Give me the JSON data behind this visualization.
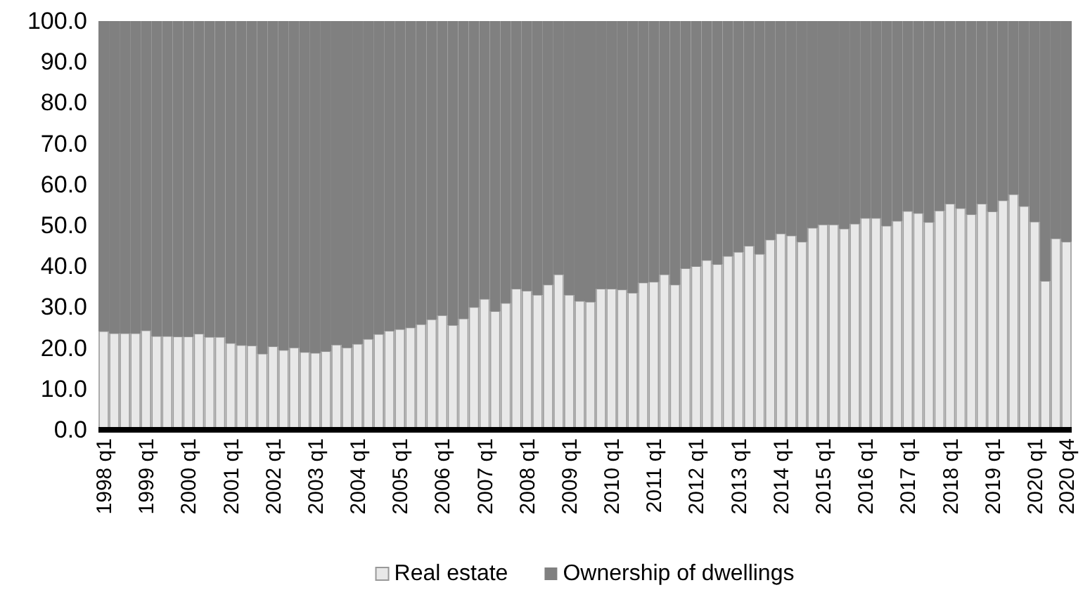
{
  "chart_data": {
    "type": "bar",
    "stacked": true,
    "categories": [
      "1998 q1",
      null,
      null,
      null,
      "1999 q1",
      null,
      null,
      null,
      "2000 q1",
      null,
      null,
      null,
      "2001 q1",
      null,
      null,
      null,
      "2002 q1",
      null,
      null,
      null,
      "2003 q1",
      null,
      null,
      null,
      "2004 q1",
      null,
      null,
      null,
      "2005 q1",
      null,
      null,
      null,
      "2006 q1",
      null,
      null,
      null,
      "2007 q1",
      null,
      null,
      null,
      "2008 q1",
      null,
      null,
      null,
      "2009 q1",
      null,
      null,
      null,
      "2010 q1",
      null,
      null,
      null,
      "2011 q1",
      null,
      null,
      null,
      "2012 q1",
      null,
      null,
      null,
      "2013 q1",
      null,
      null,
      null,
      "2014 q1",
      null,
      null,
      null,
      "2015 q1",
      null,
      null,
      null,
      "2016 q1",
      null,
      null,
      null,
      "2017 q1",
      null,
      null,
      null,
      "2018 q1",
      null,
      null,
      null,
      "2019 q1",
      null,
      null,
      null,
      "2020 q1",
      null,
      null,
      "2020 q4"
    ],
    "series": [
      {
        "name": "Real estate",
        "color": "#e8e8e8",
        "values": [
          24.1,
          23.6,
          23.6,
          23.6,
          24.3,
          22.9,
          22.9,
          22.8,
          22.8,
          23.5,
          22.7,
          22.7,
          21.2,
          20.7,
          20.6,
          18.6,
          20.4,
          19.5,
          20.1,
          19.0,
          18.8,
          19.2,
          20.8,
          20.1,
          21.0,
          22.2,
          23.4,
          24.2,
          24.6,
          25.0,
          25.8,
          27.0,
          28.0,
          25.6,
          27.2,
          30.0,
          32.0,
          29.0,
          31.0,
          34.5,
          34.0,
          33.0,
          35.5,
          38.0,
          33.0,
          31.5,
          31.3,
          34.5,
          34.5,
          34.3,
          33.5,
          36.0,
          36.2,
          38.0,
          35.5,
          39.5,
          40.0,
          41.5,
          40.5,
          42.5,
          43.5,
          45.0,
          43.0,
          46.5,
          48.0,
          47.5,
          46.0,
          49.4,
          50.2,
          50.2,
          49.2,
          50.4,
          51.8,
          51.8,
          49.9,
          51.1,
          53.5,
          53.0,
          50.8,
          53.6,
          55.3,
          54.2,
          52.7,
          55.3,
          53.4,
          56.1,
          57.6,
          54.7,
          50.9,
          36.4,
          46.8,
          46.0
        ]
      },
      {
        "name": "Ownership of dwellings",
        "color": "#808080",
        "values": [
          75.9,
          76.4,
          76.4,
          76.4,
          75.7,
          77.1,
          77.1,
          77.2,
          77.2,
          76.5,
          77.3,
          77.3,
          78.8,
          79.3,
          79.4,
          81.4,
          79.6,
          80.5,
          79.9,
          81.0,
          81.2,
          80.8,
          79.2,
          79.9,
          79.0,
          77.8,
          76.6,
          75.8,
          75.4,
          75.0,
          74.2,
          73.0,
          72.0,
          74.4,
          72.8,
          70.0,
          68.0,
          71.0,
          69.0,
          65.5,
          66.0,
          67.0,
          64.5,
          62.0,
          67.0,
          68.5,
          68.7,
          65.5,
          65.5,
          65.7,
          66.5,
          64.0,
          63.8,
          62.0,
          64.5,
          60.5,
          60.0,
          58.5,
          59.5,
          57.5,
          56.5,
          55.0,
          57.0,
          53.5,
          52.0,
          52.5,
          54.0,
          50.6,
          49.8,
          49.8,
          50.8,
          49.6,
          48.2,
          48.2,
          50.1,
          48.9,
          46.5,
          47.0,
          49.2,
          46.4,
          44.7,
          45.8,
          47.3,
          44.7,
          46.6,
          43.9,
          42.4,
          45.3,
          49.1,
          63.6,
          53.2,
          54.0
        ]
      }
    ],
    "ylim": [
      0,
      100
    ],
    "yticks": [
      {
        "value": 0,
        "label": "0.0"
      },
      {
        "value": 10,
        "label": "10.0"
      },
      {
        "value": 20,
        "label": "20.0"
      },
      {
        "value": 30,
        "label": "30.0"
      },
      {
        "value": 40,
        "label": "40.0"
      },
      {
        "value": 50,
        "label": "50.0"
      },
      {
        "value": 60,
        "label": "60.0"
      },
      {
        "value": 70,
        "label": "70.0"
      },
      {
        "value": 80,
        "label": "80.0"
      },
      {
        "value": 90,
        "label": "90.0"
      },
      {
        "value": 100,
        "label": "100.0"
      }
    ],
    "grid": false,
    "legend": "bottom"
  }
}
